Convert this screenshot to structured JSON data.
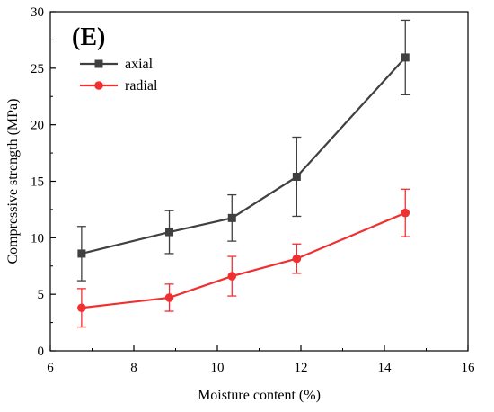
{
  "chart_data": {
    "type": "line",
    "panel_label": "(E)",
    "xlabel": "Moisture content (%)",
    "ylabel": "Compressive strength (MPa)",
    "xlim": [
      6,
      16
    ],
    "ylim": [
      0,
      30
    ],
    "xticks": [
      6,
      8,
      10,
      12,
      14,
      16
    ],
    "yticks": [
      0,
      5,
      10,
      15,
      20,
      25,
      30
    ],
    "grid": false,
    "legend_position": "top-left",
    "series": [
      {
        "name": "axial",
        "color": "#404040",
        "marker": "square",
        "x": [
          6.75,
          8.85,
          10.35,
          11.9,
          14.5
        ],
        "y": [
          8.6,
          10.5,
          11.75,
          15.4,
          25.95
        ],
        "error": [
          2.4,
          1.9,
          2.05,
          3.5,
          3.3
        ]
      },
      {
        "name": "radial",
        "color": "#f03030",
        "marker": "circle",
        "x": [
          6.75,
          8.85,
          10.35,
          11.9,
          14.5
        ],
        "y": [
          3.8,
          4.7,
          6.6,
          8.15,
          12.2
        ],
        "error": [
          1.7,
          1.2,
          1.75,
          1.3,
          2.1
        ]
      }
    ]
  }
}
